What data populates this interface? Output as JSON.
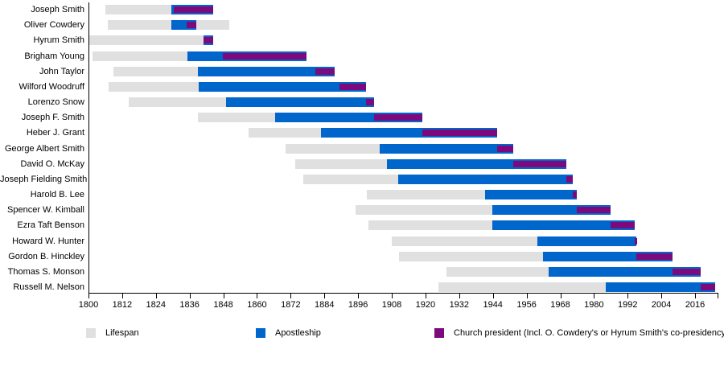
{
  "chart_data": {
    "type": "bar",
    "subtype": "horizontal-gantt-timeline",
    "title": "",
    "xlabel": "",
    "ylabel": "",
    "x_axis": {
      "min": 1800,
      "max": 2024,
      "tick_interval": 12,
      "tick_labels": [
        "1800",
        "1812",
        "1824",
        "1836",
        "1848",
        "1860",
        "1872",
        "1884",
        "1896",
        "1908",
        "1920",
        "1932",
        "1944",
        "1956",
        "1968",
        "1980",
        "1992",
        "2004",
        "2016"
      ],
      "unlabeled_edge_tick": 2024,
      "grid": false
    },
    "colors": {
      "lifespan": "#e0e0e0",
      "apostleship": "#0066cc",
      "president": "#7d0a7d",
      "axis": "#000000",
      "text": "#000000",
      "background": "#ffffff"
    },
    "legend": {
      "position": "bottom",
      "items": [
        {
          "key": "lifespan",
          "label": "Lifespan",
          "color": "#e0e0e0"
        },
        {
          "key": "apostleship",
          "label": "Apostleship",
          "color": "#0066cc"
        },
        {
          "key": "president",
          "label": "Church president (Incl. O. Cowdery's or Hyrum Smith's co-presidency)",
          "color": "#7d0a7d"
        }
      ]
    },
    "rows": [
      {
        "name": "Joseph Smith",
        "lifespan": [
          1806.0,
          1844.5
        ],
        "apostleship": [
          1829.4,
          1844.5
        ],
        "presidency": [
          1830.3,
          1844.5
        ]
      },
      {
        "name": "Oliver Cowdery",
        "lifespan": [
          1806.8,
          1850.2
        ],
        "apostleship": [
          1829.4,
          1838.3
        ],
        "presidency": [
          1834.9,
          1838.3
        ]
      },
      {
        "name": "Hyrum Smith",
        "lifespan": [
          1800.1,
          1844.5
        ],
        "apostleship": [
          1841.1,
          1844.5
        ],
        "presidency": [
          1841.1,
          1844.5
        ]
      },
      {
        "name": "Brigham Young",
        "lifespan": [
          1801.4,
          1877.7
        ],
        "apostleship": [
          1835.1,
          1877.7
        ],
        "presidency": [
          1847.9,
          1877.7
        ]
      },
      {
        "name": "John Taylor",
        "lifespan": [
          1808.8,
          1887.6
        ],
        "apostleship": [
          1839.0,
          1887.6
        ],
        "presidency": [
          1880.8,
          1887.6
        ]
      },
      {
        "name": "Wilford Woodruff",
        "lifespan": [
          1807.2,
          1898.7
        ],
        "apostleship": [
          1839.3,
          1898.7
        ],
        "presidency": [
          1889.3,
          1898.7
        ]
      },
      {
        "name": "Lorenzo Snow",
        "lifespan": [
          1814.3,
          1901.8
        ],
        "apostleship": [
          1849.1,
          1901.8
        ],
        "presidency": [
          1898.7,
          1901.8
        ]
      },
      {
        "name": "Joseph F. Smith",
        "lifespan": [
          1838.9,
          1918.9
        ],
        "apostleship": [
          1866.5,
          1918.9
        ],
        "presidency": [
          1901.8,
          1918.9
        ]
      },
      {
        "name": "Heber J. Grant",
        "lifespan": [
          1856.9,
          1945.4
        ],
        "apostleship": [
          1882.8,
          1945.4
        ],
        "presidency": [
          1918.9,
          1945.4
        ]
      },
      {
        "name": "George Albert Smith",
        "lifespan": [
          1870.3,
          1951.3
        ],
        "apostleship": [
          1903.8,
          1951.3
        ],
        "presidency": [
          1945.4,
          1951.3
        ]
      },
      {
        "name": "David O. McKay",
        "lifespan": [
          1873.7,
          1970.1
        ],
        "apostleship": [
          1906.3,
          1970.1
        ],
        "presidency": [
          1951.3,
          1970.1
        ]
      },
      {
        "name": "Joseph Fielding Smith",
        "lifespan": [
          1876.5,
          1972.5
        ],
        "apostleship": [
          1910.3,
          1972.5
        ],
        "presidency": [
          1970.1,
          1972.5
        ]
      },
      {
        "name": "Harold B. Lee",
        "lifespan": [
          1899.2,
          1974.0
        ],
        "apostleship": [
          1941.3,
          1974.0
        ],
        "presidency": [
          1972.5,
          1974.0
        ]
      },
      {
        "name": "Spencer W. Kimball",
        "lifespan": [
          1895.2,
          1985.9
        ],
        "apostleship": [
          1943.8,
          1985.9
        ],
        "presidency": [
          1974.0,
          1985.9
        ]
      },
      {
        "name": "Ezra Taft Benson",
        "lifespan": [
          1899.6,
          1994.4
        ],
        "apostleship": [
          1943.8,
          1994.4
        ],
        "presidency": [
          1985.9,
          1994.4
        ]
      },
      {
        "name": "Howard W. Hunter",
        "lifespan": [
          1907.9,
          1995.2
        ],
        "apostleship": [
          1959.8,
          1995.2
        ],
        "presidency": [
          1994.4,
          1995.2
        ]
      },
      {
        "name": "Gordon B. Hinckley",
        "lifespan": [
          1910.5,
          2008.1
        ],
        "apostleship": [
          1961.8,
          2008.1
        ],
        "presidency": [
          1995.2,
          2008.1
        ]
      },
      {
        "name": "Thomas S. Monson",
        "lifespan": [
          1927.6,
          2018.0
        ],
        "apostleship": [
          1963.8,
          2018.0
        ],
        "presidency": [
          2008.1,
          2018.0
        ]
      },
      {
        "name": "Russell M. Nelson",
        "lifespan": [
          1924.7,
          2023.2
        ],
        "apostleship": [
          1984.3,
          2023.2
        ],
        "presidency": [
          2018.0,
          2023.2
        ]
      }
    ]
  }
}
